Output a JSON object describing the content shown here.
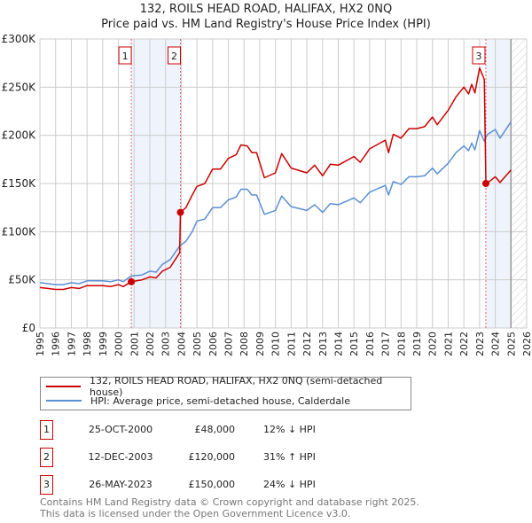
{
  "title": "132, ROILS HEAD ROAD, HALIFAX, HX2 0NQ",
  "subtitle": "Price paid vs. HM Land Registry's House Price Index (HPI)",
  "chart_data": {
    "type": "line",
    "title": "132, ROILS HEAD ROAD, HALIFAX, HX2 0NQ — Price paid vs. HM Land Registry's House Price Index (HPI)",
    "xlim": [
      1995,
      2026
    ],
    "ylim": [
      0,
      300000
    ],
    "x_ticks": [
      "1995",
      "1996",
      "1997",
      "1998",
      "1999",
      "2000",
      "2001",
      "2002",
      "2003",
      "2004",
      "2005",
      "2006",
      "2007",
      "2008",
      "2009",
      "2010",
      "2011",
      "2012",
      "2013",
      "2014",
      "2015",
      "2016",
      "2017",
      "2018",
      "2019",
      "2020",
      "2021",
      "2022",
      "2023",
      "2024",
      "2025",
      "2026"
    ],
    "y_ticks": [
      {
        "v": 0,
        "label": "£0"
      },
      {
        "v": 50000,
        "label": "£50K"
      },
      {
        "v": 100000,
        "label": "£100K"
      },
      {
        "v": 150000,
        "label": "£150K"
      },
      {
        "v": 200000,
        "label": "£200K"
      },
      {
        "v": 250000,
        "label": "£250K"
      },
      {
        "v": 300000,
        "label": "£300K"
      }
    ],
    "grid": true,
    "shaded_ranges": [
      [
        2000.82,
        2003.95
      ],
      [
        2023.4,
        2025
      ]
    ],
    "hatched_range": [
      2025,
      2026
    ],
    "series": [
      {
        "name": "132, ROILS HEAD ROAD, HALIFAX, HX2 0NQ (semi-detached house)",
        "color": "#cc0000",
        "points": [
          [
            1995,
            42
          ],
          [
            1995.5,
            41
          ],
          [
            1996,
            40
          ],
          [
            1996.5,
            40
          ],
          [
            1997,
            42
          ],
          [
            1997.5,
            41
          ],
          [
            1998,
            44
          ],
          [
            1998.5,
            44
          ],
          [
            1999,
            44
          ],
          [
            1999.5,
            43
          ],
          [
            2000,
            45
          ],
          [
            2000.3,
            43
          ],
          [
            2000.82,
            48
          ],
          [
            2001.5,
            50
          ],
          [
            2002,
            53
          ],
          [
            2002.4,
            52
          ],
          [
            2002.8,
            59
          ],
          [
            2003.3,
            63
          ],
          [
            2003.9,
            78
          ],
          [
            2003.95,
            120
          ],
          [
            2004.3,
            125
          ],
          [
            2004.7,
            138
          ],
          [
            2005,
            147
          ],
          [
            2005.5,
            150
          ],
          [
            2006,
            165
          ],
          [
            2006.5,
            165
          ],
          [
            2007,
            176
          ],
          [
            2007.5,
            180
          ],
          [
            2007.8,
            190
          ],
          [
            2008.2,
            189
          ],
          [
            2008.5,
            182
          ],
          [
            2008.8,
            182
          ],
          [
            2009.3,
            156
          ],
          [
            2010,
            161
          ],
          [
            2010.4,
            181
          ],
          [
            2011,
            166
          ],
          [
            2012,
            161
          ],
          [
            2012.5,
            169
          ],
          [
            2013,
            158
          ],
          [
            2013.5,
            170
          ],
          [
            2014,
            169
          ],
          [
            2015,
            178
          ],
          [
            2015.4,
            172
          ],
          [
            2016,
            186
          ],
          [
            2017,
            195
          ],
          [
            2017.2,
            182
          ],
          [
            2017.5,
            201
          ],
          [
            2018,
            197
          ],
          [
            2018.5,
            207
          ],
          [
            2019,
            207
          ],
          [
            2019.5,
            209
          ],
          [
            2020,
            219
          ],
          [
            2020.3,
            211
          ],
          [
            2021,
            226
          ],
          [
            2021.5,
            240
          ],
          [
            2022,
            250
          ],
          [
            2022.3,
            243
          ],
          [
            2022.5,
            253
          ],
          [
            2022.7,
            244
          ],
          [
            2023,
            270
          ],
          [
            2023.3,
            258
          ],
          [
            2023.4,
            150
          ],
          [
            2023.7,
            153
          ],
          [
            2024,
            157
          ],
          [
            2024.3,
            151
          ],
          [
            2025,
            164
          ]
        ]
      },
      {
        "name": "HPI: Average price, semi-detached house, Calderdale",
        "color": "#5b8fd4",
        "points": [
          [
            1995,
            47
          ],
          [
            1995.5,
            46
          ],
          [
            1996,
            45
          ],
          [
            1996.5,
            45
          ],
          [
            1997,
            47
          ],
          [
            1997.5,
            46
          ],
          [
            1998,
            49
          ],
          [
            1998.5,
            49
          ],
          [
            1999,
            49
          ],
          [
            1999.5,
            48
          ],
          [
            2000,
            50
          ],
          [
            2000.3,
            48
          ],
          [
            2000.82,
            54
          ],
          [
            2001.5,
            55
          ],
          [
            2002,
            59
          ],
          [
            2002.4,
            58
          ],
          [
            2002.8,
            66
          ],
          [
            2003.3,
            71
          ],
          [
            2003.9,
            85
          ],
          [
            2004.3,
            90
          ],
          [
            2004.7,
            100
          ],
          [
            2005,
            111
          ],
          [
            2005.5,
            113
          ],
          [
            2006,
            125
          ],
          [
            2006.5,
            125
          ],
          [
            2007,
            133
          ],
          [
            2007.5,
            136
          ],
          [
            2007.8,
            144
          ],
          [
            2008.2,
            144
          ],
          [
            2008.5,
            138
          ],
          [
            2008.8,
            138
          ],
          [
            2009.3,
            118
          ],
          [
            2010,
            122
          ],
          [
            2010.4,
            137
          ],
          [
            2011,
            126
          ],
          [
            2012,
            122
          ],
          [
            2012.5,
            128
          ],
          [
            2013,
            120
          ],
          [
            2013.5,
            129
          ],
          [
            2014,
            128
          ],
          [
            2015,
            135
          ],
          [
            2015.4,
            130
          ],
          [
            2016,
            141
          ],
          [
            2017,
            148
          ],
          [
            2017.2,
            138
          ],
          [
            2017.5,
            152
          ],
          [
            2018,
            149
          ],
          [
            2018.5,
            157
          ],
          [
            2019,
            157
          ],
          [
            2019.5,
            158
          ],
          [
            2020,
            166
          ],
          [
            2020.3,
            160
          ],
          [
            2021,
            171
          ],
          [
            2021.5,
            182
          ],
          [
            2022,
            189
          ],
          [
            2022.3,
            184
          ],
          [
            2022.5,
            192
          ],
          [
            2022.7,
            185
          ],
          [
            2023,
            205
          ],
          [
            2023.3,
            194
          ],
          [
            2023.5,
            201
          ],
          [
            2024,
            206
          ],
          [
            2024.3,
            197
          ],
          [
            2025,
            214
          ]
        ]
      }
    ],
    "y_units": "thousands GBP",
    "sales": [
      {
        "label": "1",
        "x": 2000.82,
        "value": 48
      },
      {
        "label": "2",
        "x": 2003.95,
        "value": 120
      },
      {
        "label": "3",
        "x": 2023.4,
        "value": 150
      }
    ]
  },
  "legend": {
    "property": "132, ROILS HEAD ROAD, HALIFAX, HX2 0NQ (semi-detached house)",
    "hpi": "HPI: Average price, semi-detached house, Calderdale"
  },
  "transactions": [
    {
      "num": "1",
      "date": "25-OCT-2000",
      "price": "£48,000",
      "hpi": "12% ↓ HPI"
    },
    {
      "num": "2",
      "date": "12-DEC-2003",
      "price": "£120,000",
      "hpi": "31% ↑ HPI"
    },
    {
      "num": "3",
      "date": "26-MAY-2023",
      "price": "£150,000",
      "hpi": "24% ↓ HPI"
    }
  ],
  "footer": {
    "line1": "Contains HM Land Registry data © Crown copyright and database right 2025.",
    "line2": "This data is licensed under the Open Government Licence v3.0."
  }
}
